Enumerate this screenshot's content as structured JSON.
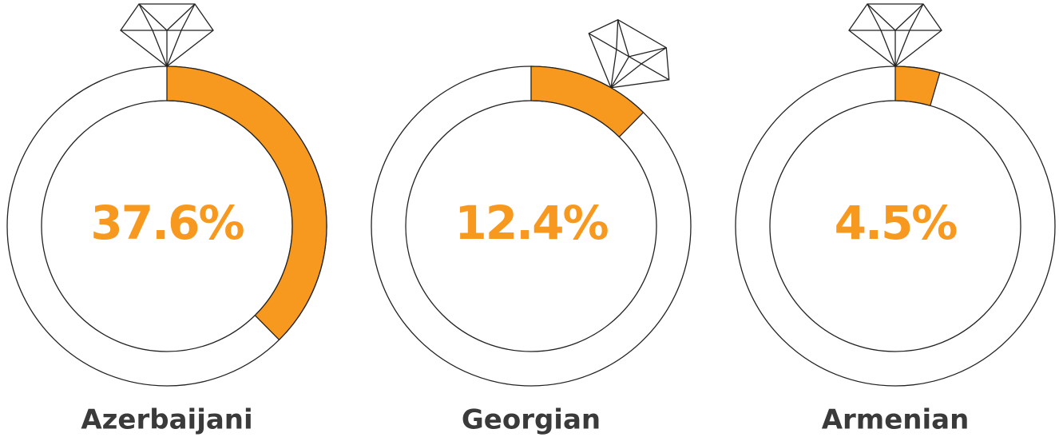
{
  "chart_data": [
    {
      "type": "ring",
      "title": "Azerbaijani",
      "values": [
        37.6
      ],
      "value_labels": [
        "37.6%"
      ],
      "color": "#f7991f"
    },
    {
      "type": "ring",
      "title": "Georgian",
      "values": [
        12.4
      ],
      "value_labels": [
        "12.4%"
      ],
      "color": "#f7991f"
    },
    {
      "type": "ring",
      "title": "Armenian",
      "values": [
        4.5
      ],
      "value_labels": [
        "4.5%"
      ],
      "color": "#f7991f"
    }
  ]
}
